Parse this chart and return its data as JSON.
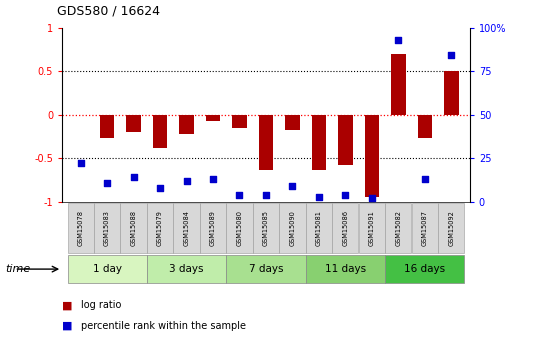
{
  "title": "GDS580 / 16624",
  "samples": [
    "GSM15078",
    "GSM15083",
    "GSM15088",
    "GSM15079",
    "GSM15084",
    "GSM15089",
    "GSM15080",
    "GSM15085",
    "GSM15090",
    "GSM15081",
    "GSM15086",
    "GSM15091",
    "GSM15082",
    "GSM15087",
    "GSM15092"
  ],
  "log_ratio": [
    0.0,
    -0.27,
    -0.2,
    -0.38,
    -0.22,
    -0.07,
    -0.15,
    -0.63,
    -0.17,
    -0.63,
    -0.58,
    -0.95,
    0.7,
    -0.27,
    0.5
  ],
  "percentile_rank": [
    22,
    11,
    14,
    8,
    12,
    13,
    4,
    4,
    9,
    3,
    4,
    2,
    93,
    13,
    84
  ],
  "groups": [
    {
      "label": "1 day",
      "start": 0,
      "end": 3,
      "color": "#d8f5c0"
    },
    {
      "label": "3 days",
      "start": 3,
      "end": 6,
      "color": "#c0edaa"
    },
    {
      "label": "7 days",
      "start": 6,
      "end": 9,
      "color": "#a8e090"
    },
    {
      "label": "11 days",
      "start": 9,
      "end": 12,
      "color": "#88d070"
    },
    {
      "label": "16 days",
      "start": 12,
      "end": 15,
      "color": "#44c044"
    }
  ],
  "bar_color": "#aa0000",
  "dot_color": "#0000cc",
  "ylim_left": [
    -1,
    1
  ],
  "yticks_left": [
    -1,
    -0.5,
    0,
    0.5,
    1
  ],
  "ytick_labels_left": [
    "-1",
    "-0.5",
    "0",
    "0.5",
    "1"
  ],
  "yticks_right": [
    0,
    25,
    50,
    75,
    100
  ],
  "ytick_labels_right": [
    "0",
    "25",
    "50",
    "75",
    "100%"
  ],
  "bg_color": "#ffffff",
  "legend_red": "log ratio",
  "legend_blue": "percentile rank within the sample",
  "time_label": "time"
}
